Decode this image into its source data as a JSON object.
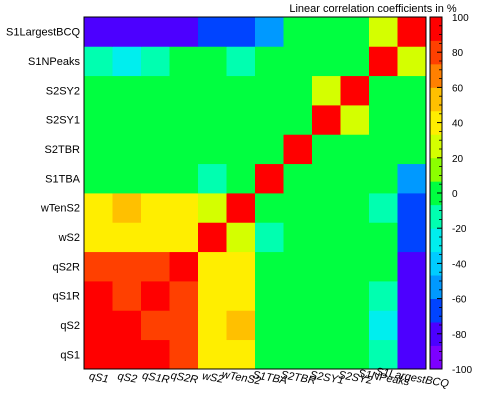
{
  "chart_data": {
    "type": "heatmap",
    "title": "Linear correlation coefficients in %",
    "x_labels": [
      "qS1",
      "qS2",
      "qS1R",
      "qS2R",
      "wS2",
      "wTenS2",
      "S1TBA",
      "S2TBR",
      "S2SY1",
      "S2SY2",
      "S1NPeaks",
      "S1LargestBCQ"
    ],
    "y_labels_bottom_to_top": [
      "qS1",
      "qS2",
      "qS1R",
      "qS2R",
      "wS2",
      "wTenS2",
      "S1TBA",
      "S2TBR",
      "S2SY1",
      "S2SY2",
      "S1NPeaks",
      "S1LargestBCQ"
    ],
    "values_rows_bottom_to_top": [
      [
        100,
        90,
        88,
        78,
        40,
        45,
        0,
        0,
        0,
        0,
        -10,
        -80
      ],
      [
        90,
        100,
        86,
        82,
        46,
        50,
        0,
        0,
        0,
        0,
        -22,
        -80
      ],
      [
        88,
        86,
        100,
        76,
        38,
        42,
        0,
        0,
        0,
        0,
        -8,
        -82
      ],
      [
        78,
        82,
        76,
        100,
        38,
        38,
        5,
        0,
        0,
        0,
        -5,
        -85
      ],
      [
        40,
        46,
        38,
        38,
        100,
        30,
        -10,
        -5,
        0,
        0,
        -5,
        -65
      ],
      [
        45,
        50,
        42,
        38,
        30,
        100,
        0,
        0,
        0,
        0,
        -10,
        -65
      ],
      [
        0,
        0,
        0,
        5,
        -10,
        0,
        100,
        0,
        0,
        0,
        0,
        -60
      ],
      [
        0,
        0,
        0,
        0,
        -5,
        0,
        0,
        100,
        -5,
        -5,
        0,
        0
      ],
      [
        0,
        0,
        0,
        0,
        0,
        0,
        0,
        -5,
        100,
        30,
        0,
        0
      ],
      [
        0,
        0,
        0,
        0,
        0,
        0,
        0,
        -5,
        30,
        100,
        0,
        0
      ],
      [
        -10,
        -22,
        -8,
        -5,
        -5,
        -10,
        0,
        0,
        0,
        0,
        100,
        20
      ],
      [
        -80,
        -80,
        -82,
        -85,
        -65,
        -65,
        -60,
        0,
        0,
        0,
        20,
        100
      ]
    ],
    "zlim": [
      -100,
      100
    ],
    "colorbar_ticks": [
      -100,
      -80,
      -60,
      -40,
      -20,
      0,
      20,
      40,
      60,
      80,
      100
    ],
    "palette": [
      "#7d00ff",
      "#4c00ff",
      "#0044ff",
      "#0099ff",
      "#00ccff",
      "#00eeee",
      "#00ffb0",
      "#00ff40",
      "#8cff00",
      "#d4ff00",
      "#ffee00",
      "#ffc000",
      "#ff8000",
      "#ff4000",
      "#ff0000"
    ]
  }
}
